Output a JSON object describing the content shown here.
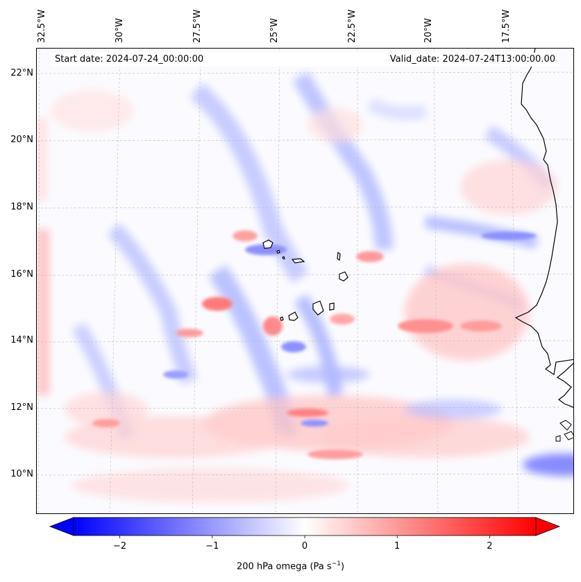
{
  "map": {
    "lon_labels": [
      "32.5°W",
      "30°W",
      "27.5°W",
      "25°W",
      "22.5°W",
      "20°W",
      "17.5°W"
    ],
    "lat_labels": [
      "22°N",
      "20°N",
      "18°N",
      "16°N",
      "14°N",
      "12°N",
      "10°N"
    ],
    "lon_values": [
      -32.5,
      -30,
      -27.5,
      -25,
      -22.5,
      -20,
      -17.5
    ],
    "lat_values": [
      22,
      20,
      18,
      16,
      14,
      12,
      10
    ],
    "extent": {
      "lon_min": -32.5,
      "lon_max": -15.0,
      "lat_min": 9.0,
      "lat_max": 22.8
    },
    "start_date": "Start date: 2024-07-24_00:00:00",
    "valid_date": "Valid_date: 2024-07-24T13:00:00.00",
    "colors": {
      "negative": "#0000ff",
      "zero": "#ffffff",
      "positive": "#ff0000",
      "coast": "#000000"
    }
  },
  "colorbar": {
    "ticks": [
      "−2",
      "−1",
      "0",
      "1",
      "2"
    ],
    "tick_values": [
      -2,
      -1,
      0,
      1,
      2
    ],
    "range": [
      -2.5,
      2.5
    ],
    "title_prefix": "200 hPa omega (Pa s",
    "title_exp": "−1",
    "title_suffix": ")"
  }
}
